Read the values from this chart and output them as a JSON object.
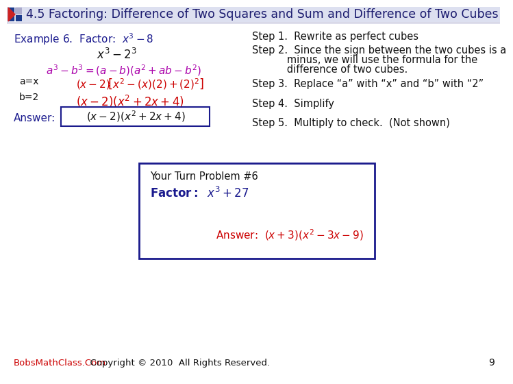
{
  "title": "4.5 Factoring: Difference of Two Squares and Sum and Difference of Two Cubes",
  "title_color": "#1a1a6e",
  "title_fontsize": 12.5,
  "bg_color": "#ffffff",
  "accent_red": "#cc0000",
  "accent_blue": "#1a1a8e",
  "step1": "Step 1.  Rewrite as perfect cubes",
  "step2a": "Step 2.  Since the sign between the two cubes is a",
  "step2b": "           minus, we will use the formula for the",
  "step2c": "           difference of two cubes.",
  "step3": "Step 3.  Replace “a” with “x” and “b” with “2”",
  "step4": "Step 4.  Simplify",
  "step5": "Step 5.  Multiply to check.  (Not shown)",
  "footer_link": "BobsMathClass.Com",
  "footer_text": "  Copyright © 2010  All Rights Reserved.",
  "page_number": "9",
  "your_turn": "Your Turn Problem #6"
}
